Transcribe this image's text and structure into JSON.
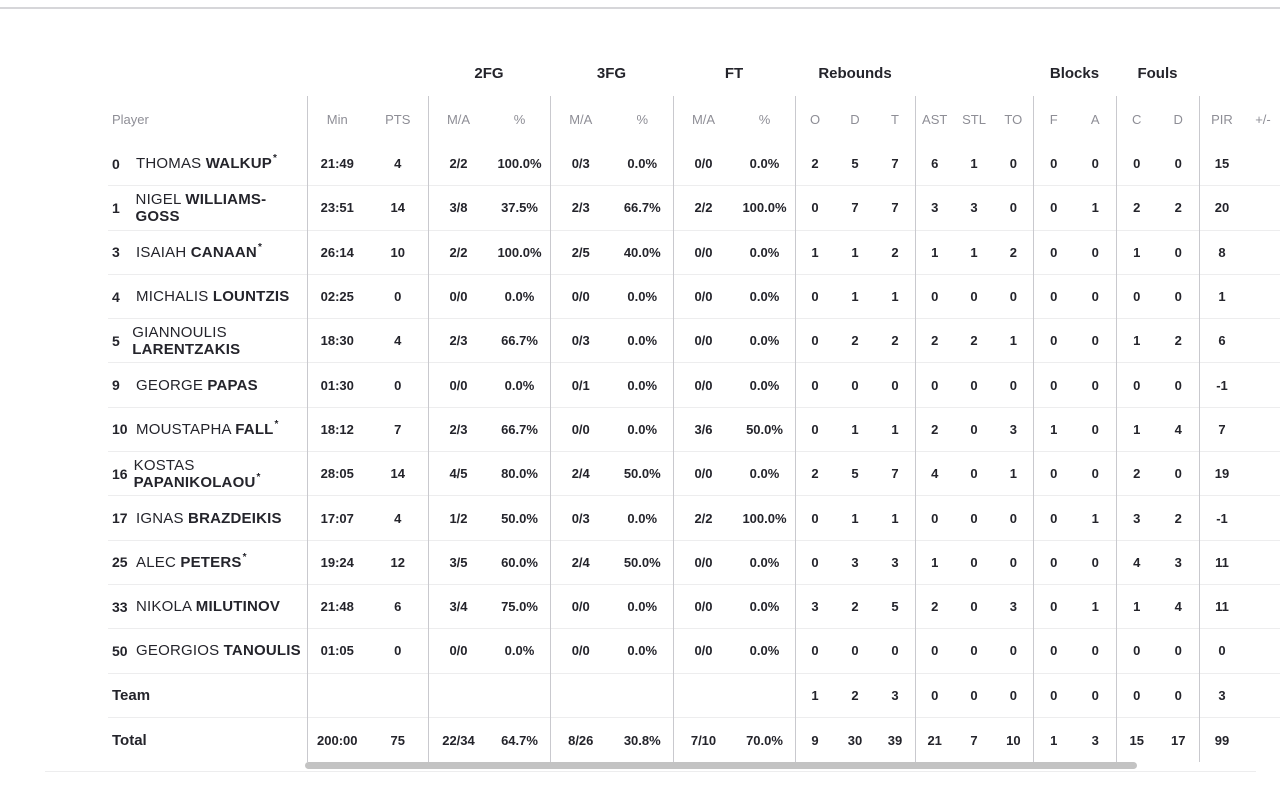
{
  "colors": {
    "ink": "#24242b",
    "muted": "#8e8e96",
    "column_line": "#c9c9ce",
    "row_line": "#ededee",
    "top_line": "#d6d6d9",
    "scrollbar_thumb": "#c3c3c3"
  },
  "table": {
    "starter_mark": "*",
    "groups": [
      {
        "label": "2FG"
      },
      {
        "label": "3FG"
      },
      {
        "label": "FT"
      },
      {
        "label": "Rebounds"
      },
      {
        "label": "Blocks"
      },
      {
        "label": "Fouls"
      }
    ],
    "columns": {
      "player": "Player",
      "min": "Min",
      "pts": "PTS",
      "ma": "M/A",
      "pct": "%",
      "o": "O",
      "d": "D",
      "t": "T",
      "ast": "AST",
      "stl": "STL",
      "to": "TO",
      "f": "F",
      "a": "A",
      "c": "C",
      "d2": "D",
      "pir": "PIR",
      "pm": "+/-"
    },
    "rows": [
      {
        "num": "0",
        "first": "THOMAS",
        "last": "WALKUP",
        "starter": true,
        "min": "21:49",
        "pts": "4",
        "fg2": "2/2",
        "fg2p": "100.0%",
        "fg3": "0/3",
        "fg3p": "0.0%",
        "ft": "0/0",
        "ftp": "0.0%",
        "o": "2",
        "d": "5",
        "t": "7",
        "ast": "6",
        "stl": "1",
        "to": "0",
        "bf": "0",
        "ba": "0",
        "fc": "0",
        "fd": "0",
        "pir": "15"
      },
      {
        "num": "1",
        "first": "NIGEL",
        "last": "WILLIAMS-GOSS",
        "starter": false,
        "min": "23:51",
        "pts": "14",
        "fg2": "3/8",
        "fg2p": "37.5%",
        "fg3": "2/3",
        "fg3p": "66.7%",
        "ft": "2/2",
        "ftp": "100.0%",
        "o": "0",
        "d": "7",
        "t": "7",
        "ast": "3",
        "stl": "3",
        "to": "0",
        "bf": "0",
        "ba": "1",
        "fc": "2",
        "fd": "2",
        "pir": "20"
      },
      {
        "num": "3",
        "first": "ISAIAH",
        "last": "CANAAN",
        "starter": true,
        "min": "26:14",
        "pts": "10",
        "fg2": "2/2",
        "fg2p": "100.0%",
        "fg3": "2/5",
        "fg3p": "40.0%",
        "ft": "0/0",
        "ftp": "0.0%",
        "o": "1",
        "d": "1",
        "t": "2",
        "ast": "1",
        "stl": "1",
        "to": "2",
        "bf": "0",
        "ba": "0",
        "fc": "1",
        "fd": "0",
        "pir": "8"
      },
      {
        "num": "4",
        "first": "MICHALIS",
        "last": "LOUNTZIS",
        "starter": false,
        "min": "02:25",
        "pts": "0",
        "fg2": "0/0",
        "fg2p": "0.0%",
        "fg3": "0/0",
        "fg3p": "0.0%",
        "ft": "0/0",
        "ftp": "0.0%",
        "o": "0",
        "d": "1",
        "t": "1",
        "ast": "0",
        "stl": "0",
        "to": "0",
        "bf": "0",
        "ba": "0",
        "fc": "0",
        "fd": "0",
        "pir": "1"
      },
      {
        "num": "5",
        "first": "GIANNOULIS",
        "last": "LARENTZAKIS",
        "starter": false,
        "min": "18:30",
        "pts": "4",
        "fg2": "2/3",
        "fg2p": "66.7%",
        "fg3": "0/3",
        "fg3p": "0.0%",
        "ft": "0/0",
        "ftp": "0.0%",
        "o": "0",
        "d": "2",
        "t": "2",
        "ast": "2",
        "stl": "2",
        "to": "1",
        "bf": "0",
        "ba": "0",
        "fc": "1",
        "fd": "2",
        "pir": "6"
      },
      {
        "num": "9",
        "first": "GEORGE",
        "last": "PAPAS",
        "starter": false,
        "min": "01:30",
        "pts": "0",
        "fg2": "0/0",
        "fg2p": "0.0%",
        "fg3": "0/1",
        "fg3p": "0.0%",
        "ft": "0/0",
        "ftp": "0.0%",
        "o": "0",
        "d": "0",
        "t": "0",
        "ast": "0",
        "stl": "0",
        "to": "0",
        "bf": "0",
        "ba": "0",
        "fc": "0",
        "fd": "0",
        "pir": "-1"
      },
      {
        "num": "10",
        "first": "MOUSTAPHA",
        "last": "FALL",
        "starter": true,
        "min": "18:12",
        "pts": "7",
        "fg2": "2/3",
        "fg2p": "66.7%",
        "fg3": "0/0",
        "fg3p": "0.0%",
        "ft": "3/6",
        "ftp": "50.0%",
        "o": "0",
        "d": "1",
        "t": "1",
        "ast": "2",
        "stl": "0",
        "to": "3",
        "bf": "1",
        "ba": "0",
        "fc": "1",
        "fd": "4",
        "pir": "7"
      },
      {
        "num": "16",
        "first": "KOSTAS",
        "last": "PAPANIKOLAOU",
        "starter": true,
        "min": "28:05",
        "pts": "14",
        "fg2": "4/5",
        "fg2p": "80.0%",
        "fg3": "2/4",
        "fg3p": "50.0%",
        "ft": "0/0",
        "ftp": "0.0%",
        "o": "2",
        "d": "5",
        "t": "7",
        "ast": "4",
        "stl": "0",
        "to": "1",
        "bf": "0",
        "ba": "0",
        "fc": "2",
        "fd": "0",
        "pir": "19"
      },
      {
        "num": "17",
        "first": "IGNAS",
        "last": "BRAZDEIKIS",
        "starter": false,
        "min": "17:07",
        "pts": "4",
        "fg2": "1/2",
        "fg2p": "50.0%",
        "fg3": "0/3",
        "fg3p": "0.0%",
        "ft": "2/2",
        "ftp": "100.0%",
        "o": "0",
        "d": "1",
        "t": "1",
        "ast": "0",
        "stl": "0",
        "to": "0",
        "bf": "0",
        "ba": "1",
        "fc": "3",
        "fd": "2",
        "pir": "-1"
      },
      {
        "num": "25",
        "first": "ALEC",
        "last": "PETERS",
        "starter": true,
        "min": "19:24",
        "pts": "12",
        "fg2": "3/5",
        "fg2p": "60.0%",
        "fg3": "2/4",
        "fg3p": "50.0%",
        "ft": "0/0",
        "ftp": "0.0%",
        "o": "0",
        "d": "3",
        "t": "3",
        "ast": "1",
        "stl": "0",
        "to": "0",
        "bf": "0",
        "ba": "0",
        "fc": "4",
        "fd": "3",
        "pir": "11"
      },
      {
        "num": "33",
        "first": "NIKOLA",
        "last": "MILUTINOV",
        "starter": false,
        "min": "21:48",
        "pts": "6",
        "fg2": "3/4",
        "fg2p": "75.0%",
        "fg3": "0/0",
        "fg3p": "0.0%",
        "ft": "0/0",
        "ftp": "0.0%",
        "o": "3",
        "d": "2",
        "t": "5",
        "ast": "2",
        "stl": "0",
        "to": "3",
        "bf": "0",
        "ba": "1",
        "fc": "1",
        "fd": "4",
        "pir": "11"
      },
      {
        "num": "50",
        "first": "GEORGIOS",
        "last": "TANOULIS",
        "starter": false,
        "min": "01:05",
        "pts": "0",
        "fg2": "0/0",
        "fg2p": "0.0%",
        "fg3": "0/0",
        "fg3p": "0.0%",
        "ft": "0/0",
        "ftp": "0.0%",
        "o": "0",
        "d": "0",
        "t": "0",
        "ast": "0",
        "stl": "0",
        "to": "0",
        "bf": "0",
        "ba": "0",
        "fc": "0",
        "fd": "0",
        "pir": "0"
      }
    ],
    "team_row": {
      "label": "Team",
      "o": "1",
      "d": "2",
      "t": "3",
      "ast": "0",
      "stl": "0",
      "to": "0",
      "bf": "0",
      "ba": "0",
      "fc": "0",
      "fd": "0",
      "pir": "3"
    },
    "total_row": {
      "label": "Total",
      "min": "200:00",
      "pts": "75",
      "fg2": "22/34",
      "fg2p": "64.7%",
      "fg3": "8/26",
      "fg3p": "30.8%",
      "ft": "7/10",
      "ftp": "70.0%",
      "o": "9",
      "d": "30",
      "t": "39",
      "ast": "21",
      "stl": "7",
      "to": "10",
      "bf": "1",
      "ba": "3",
      "fc": "15",
      "fd": "17",
      "pir": "99"
    }
  }
}
